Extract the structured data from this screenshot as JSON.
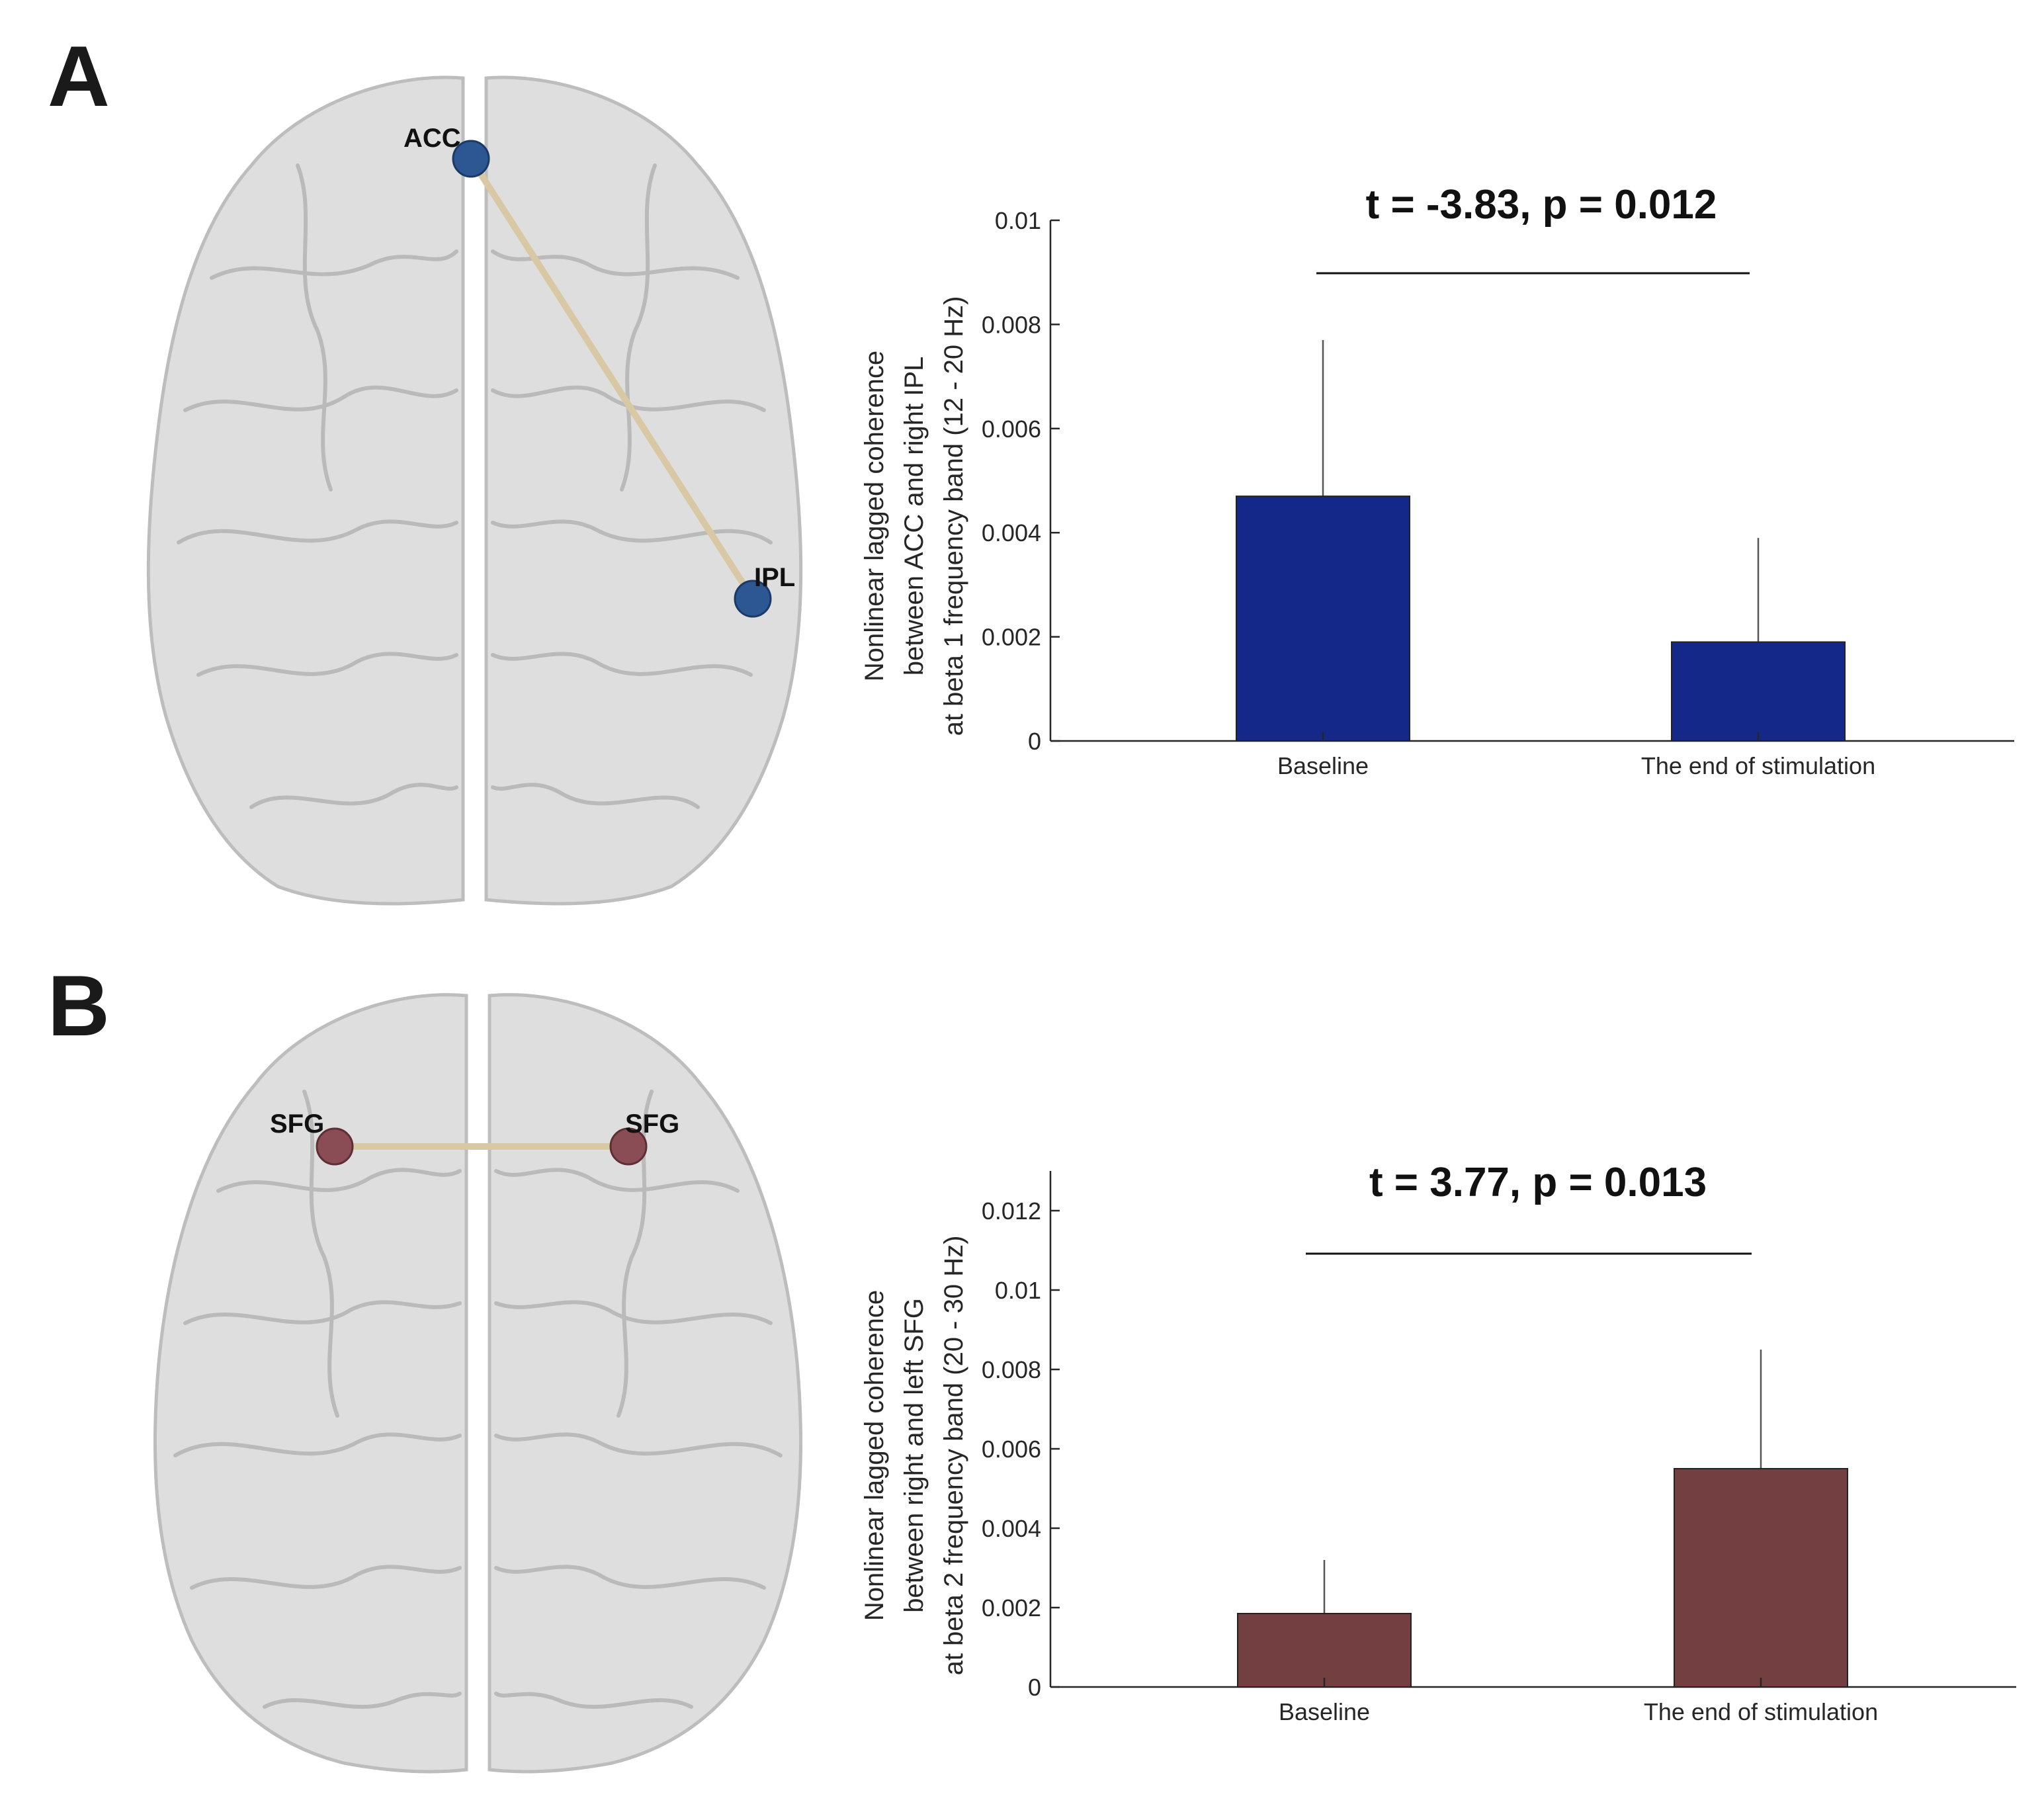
{
  "colors": {
    "panelA_bar": "#14288a",
    "panelB_bar": "#743f41",
    "panelA_node": "#2c5792",
    "panelB_node": "#8a4d55",
    "connection": "#d8c9a4",
    "brain_fill": "#d6d6d6",
    "brain_stroke": "#bdbdbd",
    "axis": "#262626"
  },
  "panels": [
    {
      "letter": "A",
      "brain": {
        "nodes": [
          {
            "label": "ACC"
          },
          {
            "label": "IPL"
          }
        ]
      }
    },
    {
      "letter": "B",
      "brain": {
        "nodes": [
          {
            "label": "SFG"
          },
          {
            "label": "SFG"
          }
        ]
      }
    }
  ],
  "chart_data": [
    {
      "type": "bar",
      "panel": "A",
      "categories": [
        "Baseline",
        "The end of stimulation"
      ],
      "values": [
        0.0047,
        0.0019
      ],
      "errors": [
        0.003,
        0.002
      ],
      "ylim": [
        0,
        0.01
      ],
      "yticks": [
        0,
        0.002,
        0.004,
        0.006,
        0.008,
        0.01
      ],
      "ytick_labels": [
        "0",
        "0.002",
        "0.004",
        "0.006",
        "0.008",
        "0.01"
      ],
      "ylabel": [
        "Nonlinear lagged coherence",
        "between ACC and right IPL",
        "at beta 1 frequency band (12 - 20 Hz)"
      ],
      "annotation": "t = -3.83, p = 0.012",
      "grid": false
    },
    {
      "type": "bar",
      "panel": "B",
      "categories": [
        "Baseline",
        "The end of stimulation"
      ],
      "values": [
        0.00185,
        0.0055
      ],
      "errors": [
        0.00135,
        0.003
      ],
      "ylim": [
        0,
        0.013
      ],
      "yticks": [
        0,
        0.002,
        0.004,
        0.006,
        0.008,
        0.01,
        0.012
      ],
      "ytick_labels": [
        "0",
        "0.002",
        "0.004",
        "0.006",
        "0.008",
        "0.01",
        "0.012"
      ],
      "ylabel": [
        "Nonlinear lagged coherence",
        "between right and left SFG",
        "at beta 2 frequency band (20 - 30 Hz)"
      ],
      "annotation": "t = 3.77, p = 0.013",
      "grid": false
    }
  ]
}
